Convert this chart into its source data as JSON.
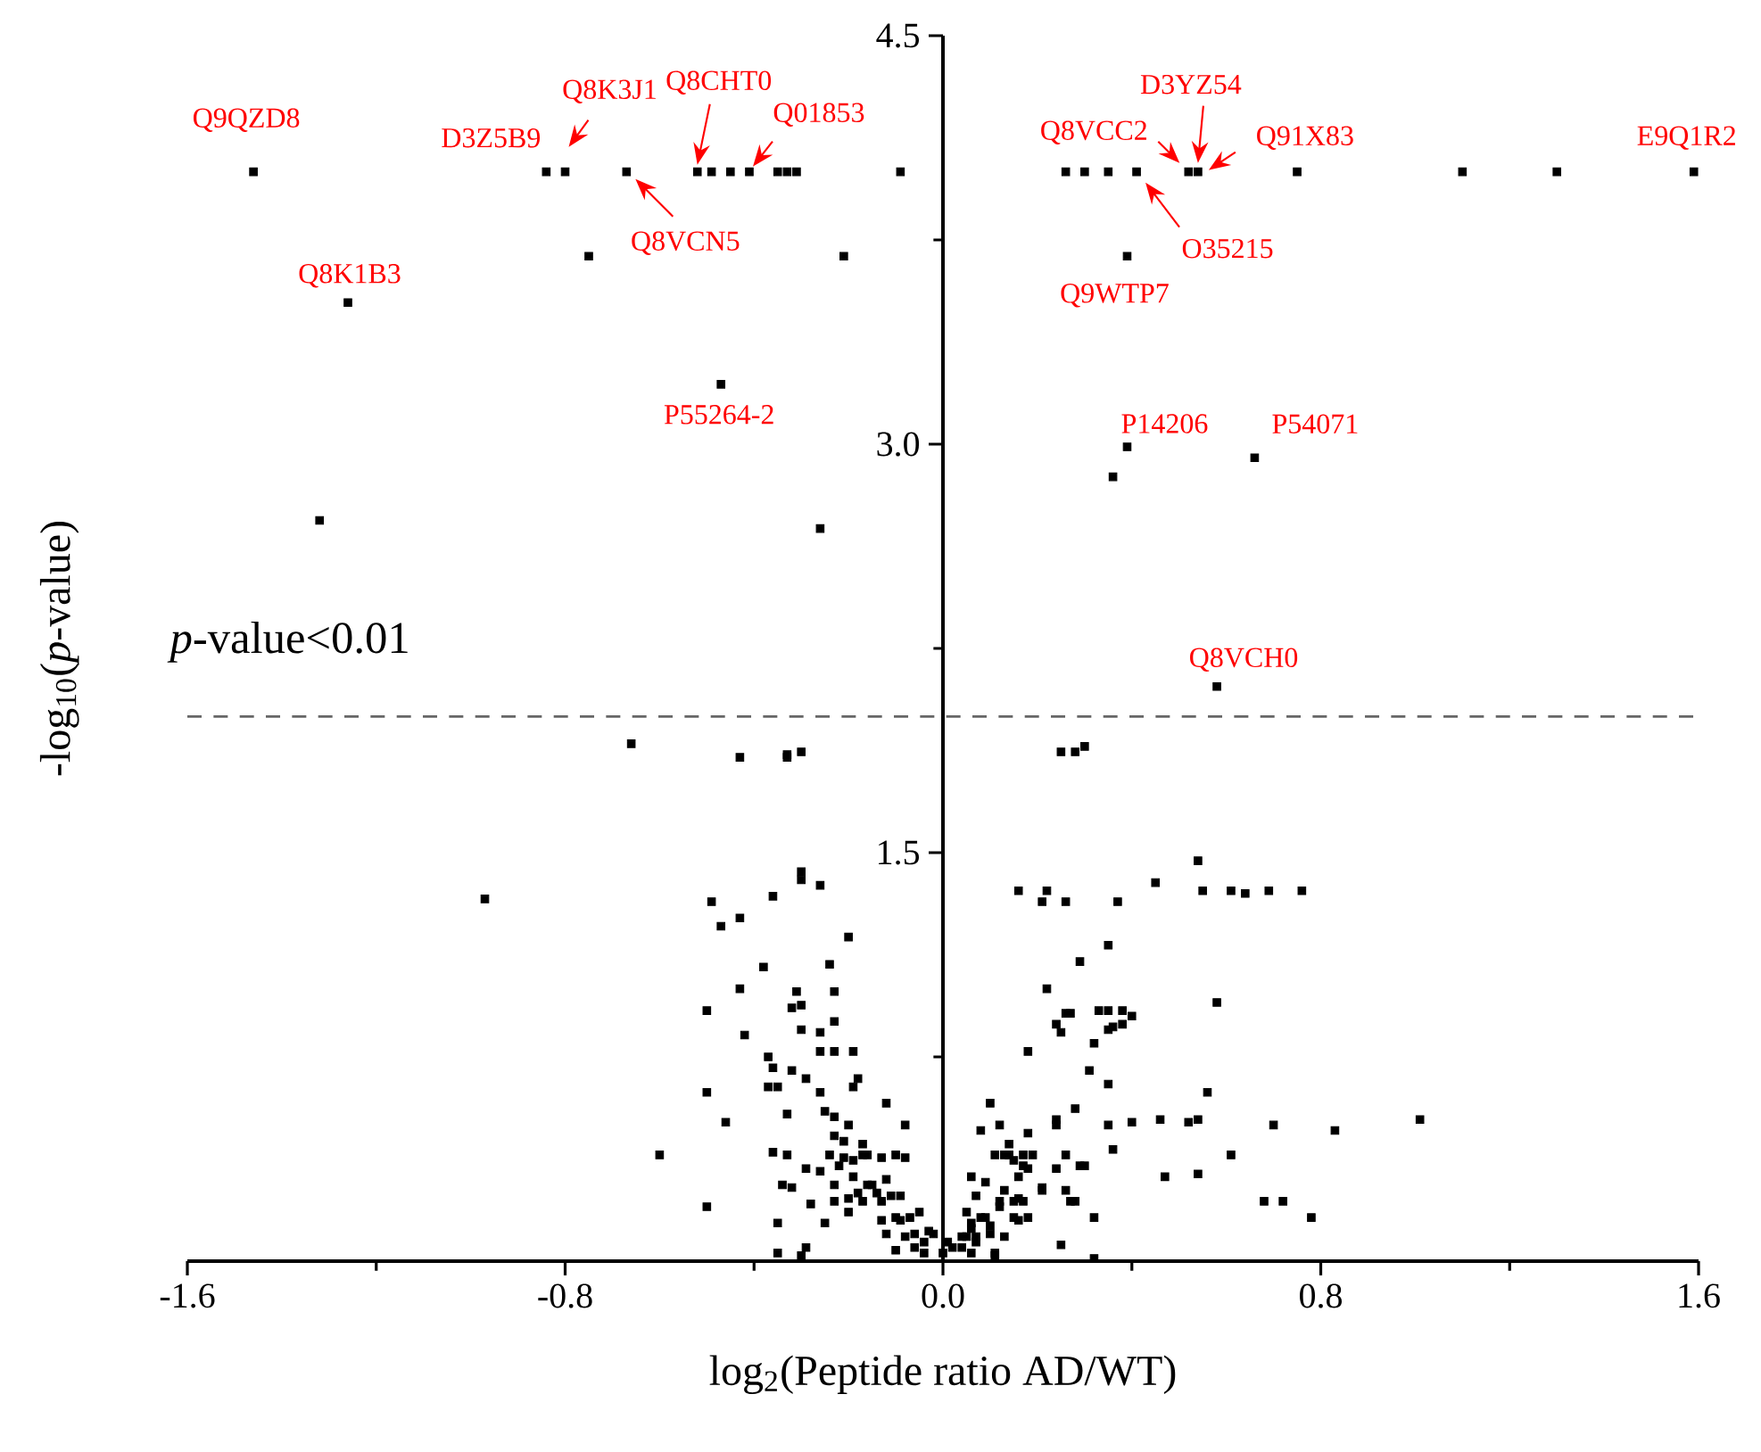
{
  "chart_data": {
    "type": "scatter",
    "xlabel": "log$_{2}$(Peptide ratio AD/WT)",
    "ylabel": "-log$_{10}$(*p*-value)",
    "marker": "square",
    "xlim": [
      -1.6,
      1.6
    ],
    "ylim": [
      0,
      4.5
    ],
    "xticks": [
      -1.6,
      {
        "value": -1.2,
        "label": null
      },
      -0.8,
      {
        "value": -0.4,
        "label": null
      },
      {
        "value": 0,
        "label": "0.0"
      },
      {
        "value": 0.4,
        "label": null
      },
      0.8,
      {
        "value": 1.2,
        "label": null
      },
      1.6
    ],
    "yticks": [
      {
        "value": 0.75,
        "label": null
      },
      1.5,
      {
        "value": 2.25,
        "label": null
      },
      {
        "value": 3,
        "label": "3.0"
      },
      {
        "value": 3.75,
        "label": null
      },
      4.5
    ],
    "ref_lines": [
      {
        "axis": "y",
        "value": 2,
        "label": "*p*-value<0.01",
        "color": "#666666",
        "line_style": "dashed"
      }
    ],
    "x": [
      -1.46,
      -0.84,
      -0.8,
      -0.67,
      -0.52,
      -0.49,
      -0.45,
      -0.41,
      -0.35,
      -0.33,
      -0.31,
      -0.09,
      0.26,
      0.3,
      0.35,
      0.41,
      0.52,
      0.54,
      0.75,
      1.1,
      1.3,
      1.59,
      -0.75,
      -0.21,
      -1.26,
      -0.47,
      -1.32,
      -0.26,
      0.39,
      0.39,
      0.36,
      0.66,
      0.58,
      -0.66,
      -0.97,
      -0.6,
      -0.43,
      -0.33,
      -0.33,
      -0.3,
      -0.3,
      -0.3,
      -0.26,
      -0.36,
      -0.49,
      -0.47,
      -0.43,
      -0.2,
      -0.38,
      -0.24,
      -0.43,
      -0.31,
      -0.23,
      -0.5,
      -0.32,
      -0.3,
      -0.23,
      -0.42,
      -0.3,
      -0.26,
      -0.37,
      -0.36,
      -0.26,
      -0.23,
      -0.19,
      -0.32,
      -0.29,
      -0.18,
      -0.19,
      -0.37,
      -0.35,
      -0.5,
      -0.26,
      -0.12,
      -0.25,
      -0.23,
      -0.33,
      -0.46,
      -0.2,
      -0.08,
      -0.23,
      -0.21,
      -0.17,
      -0.36,
      -0.33,
      -0.24,
      -0.21,
      -0.19,
      -0.17,
      -0.16,
      -0.13,
      -0.1,
      -0.08,
      -0.29,
      -0.26,
      -0.22,
      -0.19,
      -0.12,
      -0.34,
      -0.32,
      -0.23,
      -0.16,
      -0.15,
      -0.18,
      -0.14,
      -0.11,
      -0.09,
      -0.5,
      -0.28,
      -0.23,
      -0.2,
      -0.17,
      -0.13,
      -0.2,
      -0.13,
      -0.1,
      -0.09,
      -0.07,
      -0.05,
      -0.35,
      -0.25,
      -0.12,
      -0.08,
      -0.06,
      -0.04,
      -0.03,
      -0.02,
      -0.29,
      -0.1,
      -0.35,
      -0.3,
      -0.06,
      -0.04,
      0.25,
      0.28,
      0.3,
      0.54,
      0.16,
      0.22,
      0.21,
      0.26,
      0.37,
      0.45,
      0.55,
      0.61,
      0.64,
      0.69,
      0.76,
      0.35,
      0.29,
      0.22,
      0.58,
      0.24,
      0.25,
      0.26,
      0.27,
      0.32,
      0.33,
      0.35,
      0.35,
      0.36,
      0.38,
      0.38,
      0.4,
      0.18,
      0.31,
      0.35,
      0.56,
      0.1,
      0.28,
      0.08,
      0.12,
      0.24,
      0.24,
      0.35,
      0.4,
      0.46,
      0.52,
      0.54,
      0.7,
      0.83,
      1.01,
      0.18,
      0.14,
      0.11,
      0.13,
      0.14,
      0.15,
      0.17,
      0.19,
      0.26,
      0.17,
      0.18,
      0.24,
      0.29,
      0.3,
      0.36,
      0.16,
      0.06,
      0.61,
      0.47,
      0.54,
      0.09,
      0.13,
      0.21,
      0.21,
      0.26,
      0.07,
      0.12,
      0.15,
      0.16,
      0.17,
      0.12,
      0.27,
      0.28,
      0.68,
      0.72,
      0.05,
      0.08,
      0.09,
      0.15,
      0.16,
      0.18,
      0.32,
      0.78,
      0.06,
      0.1,
      0.06,
      0.1,
      0.13,
      0.04,
      0.05,
      0.07,
      0.07,
      0.25,
      0.01,
      0.02,
      0.04,
      0.06,
      0.11,
      0.11,
      0.32,
      0.0
    ],
    "series": [
      {
        "color": "#000000",
        "values": [
          4.0,
          4.0,
          4.0,
          4.0,
          4.0,
          4.0,
          4.0,
          4.0,
          4.0,
          4.0,
          4.0,
          4.0,
          4.0,
          4.0,
          4.0,
          4.0,
          4.0,
          4.0,
          4.0,
          4.0,
          4.0,
          4.0,
          3.69,
          3.69,
          3.52,
          3.22,
          2.72,
          2.69,
          3.69,
          2.99,
          2.88,
          2.95,
          2.11,
          1.9,
          1.33,
          0.39,
          1.85,
          1.86,
          1.85,
          1.87,
          1.43,
          1.4,
          1.38,
          1.34,
          1.32,
          1.23,
          1.26,
          1.19,
          1.08,
          1.09,
          1.0,
          0.99,
          0.99,
          0.92,
          0.93,
          0.94,
          0.88,
          0.83,
          0.85,
          0.84,
          0.75,
          0.71,
          0.77,
          0.77,
          0.77,
          0.7,
          0.67,
          0.67,
          0.64,
          0.64,
          0.64,
          0.62,
          0.62,
          0.58,
          0.55,
          0.53,
          0.54,
          0.51,
          0.5,
          0.5,
          0.46,
          0.44,
          0.43,
          0.4,
          0.39,
          0.39,
          0.38,
          0.37,
          0.39,
          0.39,
          0.38,
          0.39,
          0.38,
          0.34,
          0.33,
          0.35,
          0.31,
          0.3,
          0.28,
          0.27,
          0.28,
          0.28,
          0.28,
          0.25,
          0.25,
          0.24,
          0.24,
          0.2,
          0.21,
          0.22,
          0.23,
          0.22,
          0.22,
          0.18,
          0.15,
          0.16,
          0.15,
          0.16,
          0.18,
          0.14,
          0.14,
          0.1,
          0.09,
          0.1,
          0.07,
          0.11,
          0.1,
          0.05,
          0.04,
          0.03,
          0.02,
          0.05,
          0.03,
          1.87,
          1.87,
          1.89,
          1.47,
          1.36,
          1.36,
          1.32,
          1.32,
          1.32,
          1.39,
          1.36,
          1.36,
          1.35,
          1.36,
          1.36,
          1.16,
          1.1,
          1.0,
          0.95,
          0.87,
          0.84,
          0.91,
          0.91,
          0.8,
          0.92,
          0.92,
          0.85,
          0.86,
          0.92,
          0.87,
          0.9,
          0.77,
          0.7,
          0.65,
          0.62,
          0.58,
          0.56,
          0.48,
          0.5,
          0.52,
          0.5,
          0.5,
          0.51,
          0.52,
          0.51,
          0.52,
          0.5,
          0.48,
          0.52,
          0.47,
          0.43,
          0.39,
          0.39,
          0.39,
          0.37,
          0.39,
          0.39,
          0.39,
          0.35,
          0.34,
          0.34,
          0.35,
          0.35,
          0.41,
          0.31,
          0.31,
          0.39,
          0.31,
          0.32,
          0.29,
          0.26,
          0.27,
          0.26,
          0.26,
          0.24,
          0.22,
          0.22,
          0.23,
          0.22,
          0.2,
          0.22,
          0.22,
          0.22,
          0.22,
          0.18,
          0.16,
          0.16,
          0.16,
          0.15,
          0.16,
          0.16,
          0.16,
          0.14,
          0.13,
          0.12,
          0.1,
          0.09,
          0.09,
          0.09,
          0.09,
          0.07,
          0.06,
          0.07,
          0.05,
          0.05,
          0.03,
          0.03,
          0.02,
          0.01,
          0.03
        ]
      }
    ],
    "annotations": [
      {
        "text": "Q9QZD8",
        "x": -1.46,
        "y": 4.0
      },
      {
        "text": "D3Z5B9",
        "x": -0.84,
        "y": 4.0
      },
      {
        "text": "Q8K3J1",
        "x": -0.8,
        "y": 4.0
      },
      {
        "text": "Q8VCN5",
        "x": -0.67,
        "y": 4.0
      },
      {
        "text": "Q8CHT0",
        "x": -0.52,
        "y": 4.0
      },
      {
        "text": "Q01853",
        "x": -0.41,
        "y": 4.0
      },
      {
        "text": "Q8K1B3",
        "x": -1.26,
        "y": 3.52
      },
      {
        "text": "P55264-2",
        "x": -0.47,
        "y": 3.22
      },
      {
        "text": "Q8VCC2",
        "x": 0.52,
        "y": 4.0
      },
      {
        "text": "D3YZ54",
        "x": 0.54,
        "y": 4.0
      },
      {
        "text": "Q91X83",
        "x": 0.54,
        "y": 4.0
      },
      {
        "text": "O35215",
        "x": 0.41,
        "y": 4.0
      },
      {
        "text": "Q9WTP7",
        "x": 0.39,
        "y": 3.69
      },
      {
        "text": "P14206",
        "x": 0.39,
        "y": 2.99
      },
      {
        "text": "P54071",
        "x": 0.66,
        "y": 2.95
      },
      {
        "text": "E9Q1R2",
        "x": 1.59,
        "y": 4.0
      },
      {
        "text": "Q8VCH0",
        "x": 0.58,
        "y": 2.11
      }
    ]
  }
}
